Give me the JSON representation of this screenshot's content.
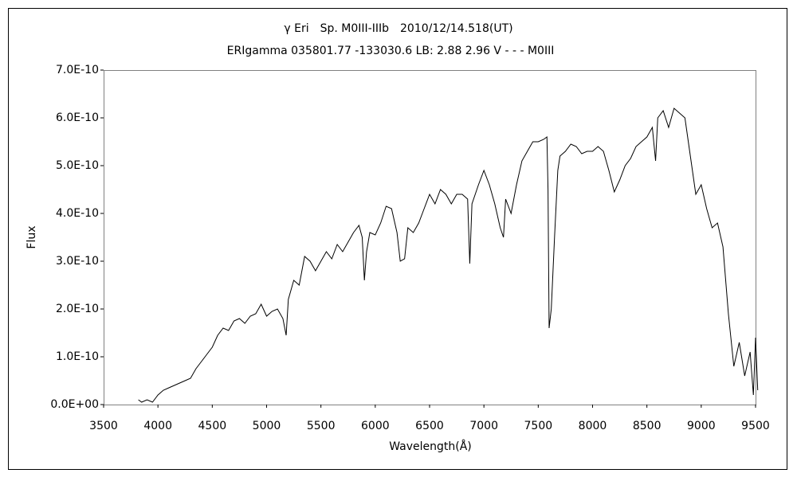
{
  "chart_data": {
    "type": "line",
    "title": "γ Eri　Sp. M0III-IIIb　2010/12/14.518(UT)",
    "subtitle": "ERIgamma 035801.77 -133030.6 LB: 2.88 2.96 V - - - M0III",
    "x_label": "Wavelength(Å)",
    "y_label": "Flux",
    "xlim": [
      3500,
      9500
    ],
    "xticks": [
      3500,
      4000,
      4500,
      5000,
      5500,
      6000,
      6500,
      7000,
      7500,
      8000,
      8500,
      9000,
      9500
    ],
    "ylim": [
      0,
      7e-10
    ],
    "yticks": [
      {
        "value": 0,
        "label": "0.0E+00"
      },
      {
        "value": 1e-10,
        "label": "1.0E-10"
      },
      {
        "value": 2e-10,
        "label": "2.0E-10"
      },
      {
        "value": 3e-10,
        "label": "3.0E-10"
      },
      {
        "value": 4e-10,
        "label": "4.0E-10"
      },
      {
        "value": 5e-10,
        "label": "5.0E-10"
      },
      {
        "value": 6e-10,
        "label": "6.0E-10"
      },
      {
        "value": 7e-10,
        "label": "7.0E-10"
      }
    ],
    "grid": false,
    "x": [
      3820,
      3850,
      3900,
      3950,
      4000,
      4050,
      4100,
      4150,
      4200,
      4250,
      4300,
      4350,
      4400,
      4450,
      4500,
      4550,
      4600,
      4650,
      4700,
      4750,
      4800,
      4850,
      4900,
      4950,
      5000,
      5050,
      5100,
      5150,
      5180,
      5200,
      5250,
      5300,
      5350,
      5400,
      5450,
      5500,
      5550,
      5600,
      5650,
      5700,
      5750,
      5800,
      5850,
      5880,
      5900,
      5920,
      5950,
      6000,
      6050,
      6100,
      6150,
      6200,
      6230,
      6270,
      6300,
      6350,
      6400,
      6450,
      6500,
      6550,
      6600,
      6650,
      6700,
      6750,
      6800,
      6850,
      6870,
      6890,
      6950,
      7000,
      7050,
      7100,
      7150,
      7180,
      7200,
      7250,
      7300,
      7350,
      7400,
      7450,
      7500,
      7550,
      7580,
      7590,
      7600,
      7620,
      7650,
      7680,
      7700,
      7750,
      7800,
      7850,
      7900,
      7950,
      8000,
      8050,
      8100,
      8150,
      8200,
      8250,
      8300,
      8350,
      8400,
      8450,
      8500,
      8550,
      8580,
      8600,
      8650,
      8700,
      8750,
      8800,
      8850,
      8900,
      8950,
      9000,
      9050,
      9100,
      9150,
      9200,
      9250,
      9300,
      9350,
      9400,
      9450,
      9480,
      9500,
      9520
    ],
    "series": [
      {
        "color": "#000000",
        "values": [
          1e-11,
          5e-12,
          1e-11,
          5e-12,
          2e-11,
          3e-11,
          3.5e-11,
          4e-11,
          4.5e-11,
          5e-11,
          5.5e-11,
          7.5e-11,
          9e-11,
          1.05e-10,
          1.2e-10,
          1.45e-10,
          1.6e-10,
          1.55e-10,
          1.75e-10,
          1.8e-10,
          1.7e-10,
          1.85e-10,
          1.9e-10,
          2.1e-10,
          1.85e-10,
          1.95e-10,
          2e-10,
          1.8e-10,
          1.45e-10,
          2.2e-10,
          2.6e-10,
          2.5e-10,
          3.1e-10,
          3e-10,
          2.8e-10,
          3e-10,
          3.2e-10,
          3.05e-10,
          3.35e-10,
          3.2e-10,
          3.4e-10,
          3.6e-10,
          3.75e-10,
          3.5e-10,
          2.6e-10,
          3.2e-10,
          3.6e-10,
          3.55e-10,
          3.8e-10,
          4.15e-10,
          4.1e-10,
          3.6e-10,
          3e-10,
          3.05e-10,
          3.7e-10,
          3.6e-10,
          3.8e-10,
          4.1e-10,
          4.4e-10,
          4.2e-10,
          4.5e-10,
          4.4e-10,
          4.2e-10,
          4.4e-10,
          4.4e-10,
          4.3e-10,
          2.95e-10,
          4.2e-10,
          4.6e-10,
          4.9e-10,
          4.6e-10,
          4.2e-10,
          3.7e-10,
          3.5e-10,
          4.3e-10,
          4e-10,
          4.6e-10,
          5.1e-10,
          5.3e-10,
          5.5e-10,
          5.5e-10,
          5.55e-10,
          5.6e-10,
          4.5e-10,
          1.6e-10,
          2e-10,
          3.5e-10,
          4.9e-10,
          5.2e-10,
          5.3e-10,
          5.45e-10,
          5.4e-10,
          5.25e-10,
          5.3e-10,
          5.3e-10,
          5.4e-10,
          5.3e-10,
          4.9e-10,
          4.45e-10,
          4.7e-10,
          5e-10,
          5.15e-10,
          5.4e-10,
          5.5e-10,
          5.6e-10,
          5.8e-10,
          5.1e-10,
          6e-10,
          6.15e-10,
          5.8e-10,
          6.2e-10,
          6.1e-10,
          6e-10,
          5.2e-10,
          4.4e-10,
          4.6e-10,
          4.1e-10,
          3.7e-10,
          3.8e-10,
          3.3e-10,
          1.9e-10,
          8e-11,
          1.3e-10,
          6e-11,
          1.1e-10,
          2e-11,
          1.4e-10,
          3e-11
        ]
      }
    ]
  }
}
